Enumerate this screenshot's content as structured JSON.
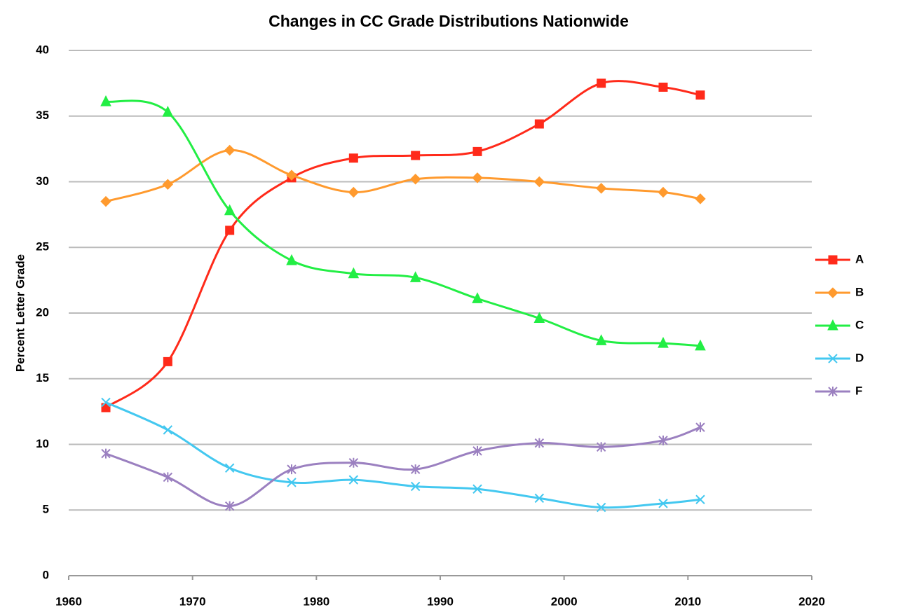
{
  "chart_data": {
    "type": "line",
    "title": "Changes in CC Grade Distributions Nationwide",
    "y_label": "Percent Letter Grade",
    "x": [
      1963,
      1968,
      1973,
      1978,
      1983,
      1988,
      1993,
      1998,
      2003,
      2008,
      2011
    ],
    "series": [
      {
        "name": "A",
        "color": "#ff2a1a",
        "marker": "square",
        "values": [
          12.8,
          16.3,
          26.3,
          30.3,
          31.8,
          32.0,
          32.3,
          34.4,
          37.5,
          37.2,
          36.6
        ]
      },
      {
        "name": "B",
        "color": "#ff9a2e",
        "marker": "diamond",
        "values": [
          28.5,
          29.8,
          32.4,
          30.5,
          29.2,
          30.2,
          30.3,
          30.0,
          29.5,
          29.2,
          28.7
        ]
      },
      {
        "name": "C",
        "color": "#22ee44",
        "marker": "triangle",
        "values": [
          36.1,
          35.3,
          27.8,
          24.0,
          23.0,
          22.7,
          21.1,
          19.6,
          17.9,
          17.7,
          17.5
        ]
      },
      {
        "name": "D",
        "color": "#44c8f0",
        "marker": "x",
        "values": [
          13.2,
          11.1,
          8.2,
          7.1,
          7.3,
          6.8,
          6.6,
          5.9,
          5.2,
          5.5,
          5.8
        ]
      },
      {
        "name": "F",
        "color": "#9b80c0",
        "marker": "star",
        "values": [
          9.3,
          7.5,
          5.3,
          8.1,
          8.6,
          8.1,
          9.5,
          10.1,
          9.8,
          10.3,
          11.3
        ]
      }
    ],
    "xlim": [
      1960,
      2020
    ],
    "xticks": [
      1960,
      1970,
      1980,
      1990,
      2000,
      2010,
      2020
    ],
    "ylim": [
      0,
      40
    ],
    "yticks": [
      0,
      5,
      10,
      15,
      20,
      25,
      30,
      35,
      40
    ],
    "grid": true,
    "smooth": true,
    "legend": "right"
  }
}
